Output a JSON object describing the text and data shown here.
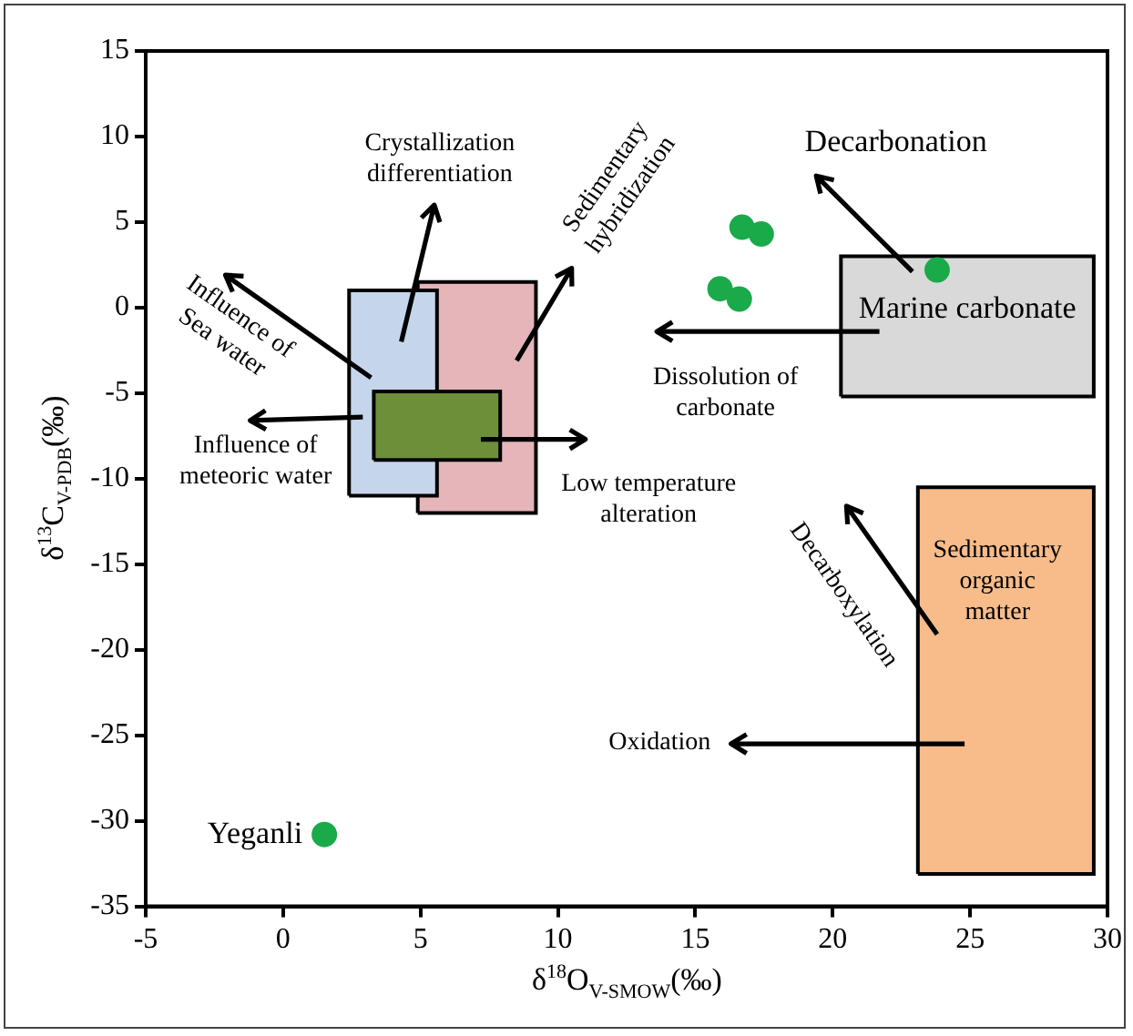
{
  "chart_data": {
    "type": "scatter",
    "xlabel": "δ$^{18}$O$_{V-SMOW}$(‰)",
    "ylabel": "δ$^{13}$C$_{V-PDB}$(‰)",
    "xlim": [
      -5,
      30
    ],
    "xticks": [
      -5,
      0,
      5,
      10,
      15,
      20,
      25,
      30
    ],
    "ylim": [
      -35,
      15
    ],
    "yticks": [
      -35,
      -30,
      -25,
      -20,
      -15,
      -10,
      -5,
      0,
      5,
      10,
      15
    ],
    "grid": false,
    "series": [
      {
        "type": "area",
        "color": "#e5b5b9",
        "x": [
          4.9,
          4.9,
          9.2,
          9.2,
          4.9
        ],
        "values": [
          -12,
          1.5,
          1.5,
          -12,
          -12
        ]
      },
      {
        "type": "area",
        "color": "#c5d6ec",
        "x": [
          2.4,
          2.4,
          5.6,
          5.6,
          2.4
        ],
        "values": [
          -11,
          1,
          1,
          -11,
          -11
        ]
      },
      {
        "type": "area",
        "color": "#6e8f3a",
        "x": [
          3.3,
          3.3,
          7.9,
          7.9,
          3.3
        ],
        "values": [
          -8.9,
          -4.9,
          -4.9,
          -8.9,
          -8.9
        ]
      },
      {
        "type": "area",
        "color": "#d9d9d9",
        "x": [
          20.3,
          20.3,
          29.5,
          29.5,
          20.3
        ],
        "values": [
          -5.2,
          3,
          3,
          -5.2,
          -5.2
        ]
      },
      {
        "type": "area",
        "color": "#f7bc8a",
        "x": [
          23.1,
          23.1,
          29.5,
          29.5,
          23.1
        ],
        "values": [
          -33.1,
          -10.5,
          -10.5,
          -33.1,
          -33.1
        ]
      },
      {
        "marker": "circle",
        "color": "#1aaa4a",
        "x": [
          16.7,
          17.4,
          15.9,
          16.6,
          23.8
        ],
        "values": [
          4.7,
          4.3,
          1.1,
          0.5,
          2.2
        ]
      },
      {
        "marker": "circle",
        "name": "Yeganli",
        "color": "#1aaa4a",
        "x": [
          1.5
        ],
        "values": [
          -30.8
        ]
      }
    ],
    "annotations": [
      "Crystallization\ndifferentiation",
      "Sedimentary\nhybridization",
      "Influence of\nSea water",
      "Influence of\nmeteoric water",
      "Low temperature\nalteration",
      "Decarbonation",
      "Marine carbonate",
      "Dissolution of\ncarbonate",
      "Decarboxylation",
      "Sedimentary\norganic\nmatter",
      "Oxidation"
    ]
  }
}
